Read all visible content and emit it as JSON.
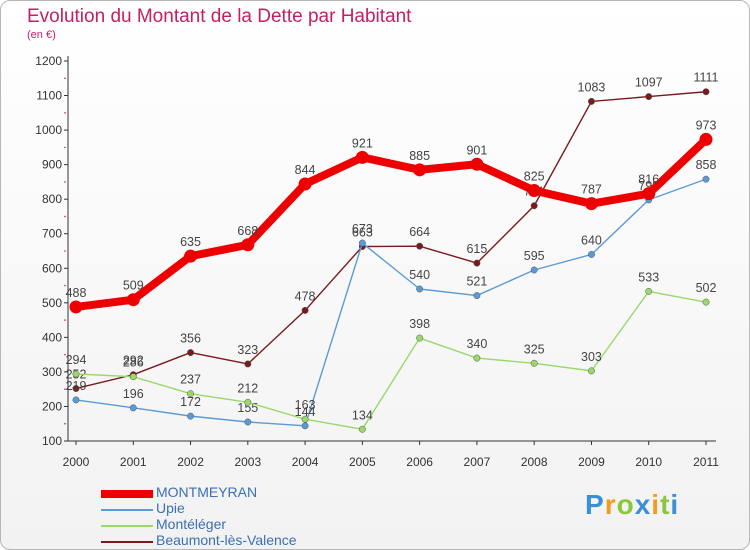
{
  "title": "Evolution du Montant de la Dette par Habitant",
  "subtitle": "(en €)",
  "chart_data": {
    "type": "line",
    "title": "Evolution du Montant de la Dette par Habitant",
    "subtitle": "(en €)",
    "categories": [
      "2000",
      "2001",
      "2002",
      "2003",
      "2004",
      "2005",
      "2006",
      "2007",
      "2008",
      "2009",
      "2010",
      "2011"
    ],
    "ylim": [
      100,
      1200
    ],
    "yticks": [
      100,
      200,
      300,
      400,
      500,
      600,
      700,
      800,
      900,
      1000,
      1100,
      1200
    ],
    "grid": false,
    "legend_position": "bottom-left",
    "series": [
      {
        "name": "Beaumont-lès-Valence",
        "color": "#7a1a1f",
        "values": [
          252,
          292,
          356,
          323,
          478,
          663,
          664,
          615,
          781,
          1083,
          1097,
          1111
        ],
        "labels": [
          "252",
          "292",
          "356",
          "323",
          "478",
          "663",
          "664",
          "615",
          "781",
          "1083",
          "1097",
          "1111"
        ]
      },
      {
        "name": "Upie",
        "color": "#5b9bd5",
        "values": [
          219,
          196,
          172,
          155,
          144,
          673,
          540,
          521,
          595,
          640,
          798,
          858
        ],
        "labels": [
          "219",
          "196",
          "172",
          "155",
          "144",
          "673",
          "540",
          "521",
          "595",
          "640",
          "798",
          "858"
        ]
      },
      {
        "name": "Montéléger",
        "color": "#9ad86a",
        "values": [
          294,
          286,
          237,
          212,
          163,
          134,
          398,
          340,
          325,
          303,
          533,
          502
        ],
        "labels": [
          "294",
          "286",
          "237",
          "212",
          "163",
          "134",
          "398",
          "340",
          "325",
          "303",
          "533",
          "502"
        ]
      },
      {
        "name": "MONTMEYRAN",
        "color": "#ee0000",
        "values": [
          488,
          509,
          635,
          668,
          844,
          921,
          885,
          901,
          825,
          787,
          816,
          973
        ],
        "labels": [
          "488",
          "509",
          "635",
          "668",
          "844",
          "921",
          "885",
          "901",
          "825",
          "787",
          "816",
          "973"
        ]
      }
    ]
  },
  "legend": [
    {
      "label": "MONTMEYRAN",
      "color": "#ee0000"
    },
    {
      "label": "Upie",
      "color": "#5b9bd5"
    },
    {
      "label": "Montéléger",
      "color": "#9ad86a"
    },
    {
      "label": "Beaumont-lès-Valence",
      "color": "#7a1a1f"
    }
  ],
  "logo": {
    "letters": [
      "P",
      "r",
      "o",
      "x",
      "i",
      "t",
      "i"
    ],
    "colors": [
      "#3a8fd6",
      "#f29b1d",
      "#8cc63f",
      "#3a8fd6",
      "#f29b1d",
      "#8cc63f",
      "#3a8fd6"
    ]
  }
}
